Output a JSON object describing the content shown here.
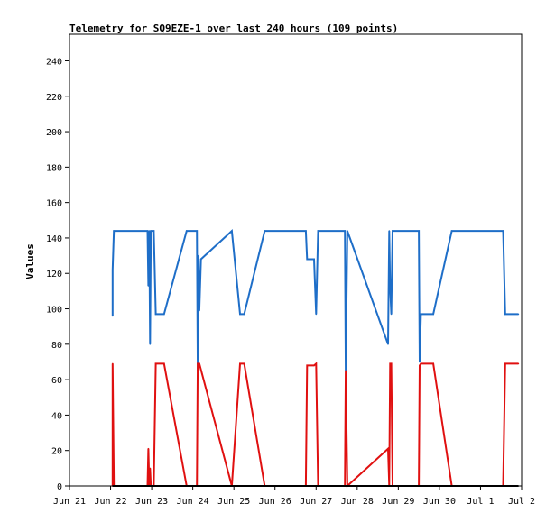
{
  "chart_data": {
    "type": "line",
    "title": "Telemetry for SQ9EZE-1 over last 240 hours (109 points)",
    "xlabel": "",
    "ylabel": "Values",
    "ylim": [
      0,
      255
    ],
    "yticks": [
      0,
      20,
      40,
      60,
      80,
      100,
      120,
      140,
      160,
      180,
      200,
      220,
      240
    ],
    "xlim": [
      0,
      11
    ],
    "xtick_labels": [
      "Jun 21",
      "Jun 22",
      "Jun 23",
      "Jun 24",
      "Jun 25",
      "Jun 26",
      "Jun 27",
      "Jun 28",
      "Jun 29",
      "Jun 30",
      "Jul 1",
      "Jul 2"
    ],
    "grid": false,
    "legend": "none",
    "series": [
      {
        "color": "#1e6ec8",
        "points": [
          [
            1.05,
            96
          ],
          [
            1.05,
            122
          ],
          [
            1.08,
            144
          ],
          [
            1.9,
            144
          ],
          [
            1.92,
            113
          ],
          [
            1.94,
            144
          ],
          [
            1.96,
            80
          ],
          [
            1.98,
            144
          ],
          [
            2.05,
            144
          ],
          [
            2.1,
            97
          ],
          [
            2.3,
            97
          ],
          [
            2.85,
            144
          ],
          [
            3.1,
            144
          ],
          [
            3.12,
            65
          ],
          [
            3.14,
            130
          ],
          [
            3.16,
            99
          ],
          [
            3.2,
            128
          ],
          [
            3.95,
            144
          ],
          [
            4.15,
            97
          ],
          [
            4.25,
            97
          ],
          [
            4.75,
            144
          ],
          [
            5.75,
            144
          ],
          [
            5.78,
            128
          ],
          [
            5.95,
            128
          ],
          [
            6.0,
            97
          ],
          [
            6.05,
            144
          ],
          [
            6.7,
            144
          ],
          [
            6.72,
            65
          ],
          [
            6.76,
            144
          ],
          [
            7.75,
            80
          ],
          [
            7.78,
            144
          ],
          [
            7.8,
            112
          ],
          [
            7.83,
            97
          ],
          [
            7.86,
            144
          ],
          [
            8.5,
            144
          ],
          [
            8.52,
            70
          ],
          [
            8.55,
            97
          ],
          [
            8.85,
            97
          ],
          [
            9.3,
            144
          ],
          [
            10.55,
            144
          ],
          [
            10.6,
            97
          ],
          [
            10.92,
            97
          ]
        ]
      },
      {
        "color": "#e01010",
        "points": [
          [
            1.05,
            0
          ],
          [
            1.05,
            69
          ],
          [
            1.08,
            0
          ],
          [
            1.9,
            0
          ],
          [
            1.92,
            21
          ],
          [
            1.94,
            0
          ],
          [
            1.96,
            10
          ],
          [
            1.98,
            0
          ],
          [
            2.05,
            0
          ],
          [
            2.1,
            69
          ],
          [
            2.3,
            69
          ],
          [
            2.85,
            0
          ],
          [
            3.1,
            0
          ],
          [
            3.12,
            69
          ],
          [
            3.16,
            69
          ],
          [
            3.95,
            0
          ],
          [
            4.15,
            69
          ],
          [
            4.25,
            69
          ],
          [
            4.75,
            0
          ],
          [
            5.75,
            0
          ],
          [
            5.78,
            68
          ],
          [
            5.95,
            68
          ],
          [
            6.0,
            69
          ],
          [
            6.05,
            0
          ],
          [
            6.7,
            0
          ],
          [
            6.72,
            65
          ],
          [
            6.76,
            0
          ],
          [
            7.75,
            21
          ],
          [
            7.78,
            0
          ],
          [
            7.8,
            69
          ],
          [
            7.83,
            69
          ],
          [
            7.86,
            0
          ],
          [
            8.5,
            0
          ],
          [
            8.52,
            68
          ],
          [
            8.55,
            69
          ],
          [
            8.85,
            69
          ],
          [
            9.3,
            0
          ],
          [
            10.55,
            0
          ],
          [
            10.6,
            69
          ],
          [
            10.92,
            69
          ]
        ]
      },
      {
        "color": "#000000",
        "points": [
          [
            1.05,
            0
          ],
          [
            10.92,
            0
          ]
        ]
      }
    ]
  }
}
